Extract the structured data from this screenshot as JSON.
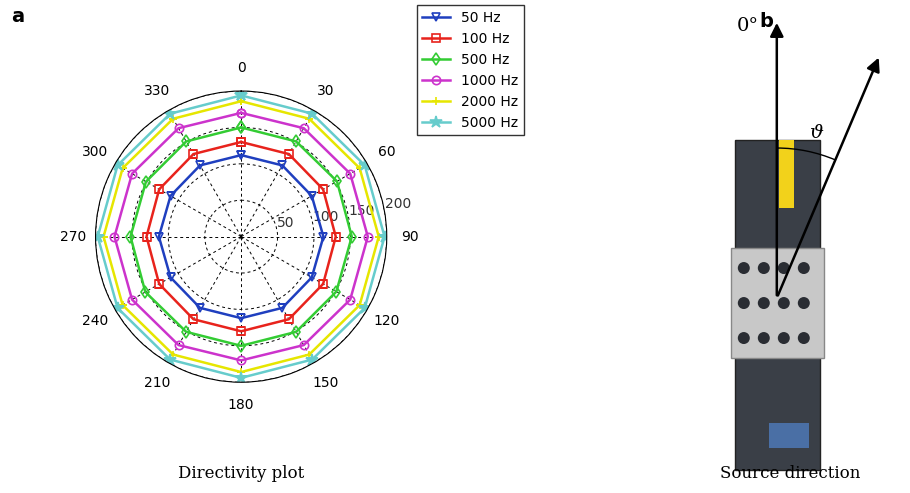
{
  "chart_data": {
    "type": "polar",
    "panel_label": "a",
    "title": "Directivity plot",
    "x": [
      0,
      30,
      60,
      90,
      120,
      150,
      180,
      210,
      240,
      270,
      300,
      330
    ],
    "xticks": [
      0,
      30,
      60,
      90,
      120,
      150,
      180,
      210,
      240,
      270,
      300,
      330
    ],
    "ylim": [
      0,
      200
    ],
    "yticks": [
      50,
      100,
      150,
      200
    ],
    "grid": true,
    "legend": "upper left",
    "series": [
      {
        "name": "50 Hz",
        "color": "#1f3fbf",
        "marker": "triangle_down",
        "values": [
          112,
          113,
          112,
          113,
          112,
          113,
          112,
          113,
          112,
          113,
          112,
          113
        ]
      },
      {
        "name": "100 Hz",
        "color": "#e8231c",
        "marker": "square",
        "values": [
          130,
          131,
          130,
          130,
          130,
          131,
          130,
          131,
          130,
          130,
          130,
          131
        ]
      },
      {
        "name": "500 Hz",
        "color": "#33cc33",
        "marker": "diamond",
        "values": [
          150,
          151,
          152,
          152,
          151,
          151,
          150,
          151,
          152,
          152,
          151,
          151
        ]
      },
      {
        "name": "1000 Hz",
        "color": "#cc33cc",
        "marker": "circle",
        "values": [
          170,
          172,
          173,
          174,
          173,
          172,
          170,
          172,
          173,
          174,
          173,
          172
        ]
      },
      {
        "name": "2000 Hz",
        "color": "#e6e600",
        "marker": "plus",
        "values": [
          186,
          187,
          188,
          189,
          188,
          187,
          186,
          187,
          188,
          189,
          188,
          187
        ]
      },
      {
        "name": "5000 Hz",
        "color": "#66cccc",
        "marker": "star",
        "values": [
          194,
          195,
          196,
          197,
          196,
          195,
          194,
          195,
          196,
          197,
          196,
          195
        ]
      }
    ]
  },
  "diagram": {
    "panel_label": "b",
    "caption": "Source direction",
    "axis_label": "0°",
    "angle_label": "ϑ"
  }
}
